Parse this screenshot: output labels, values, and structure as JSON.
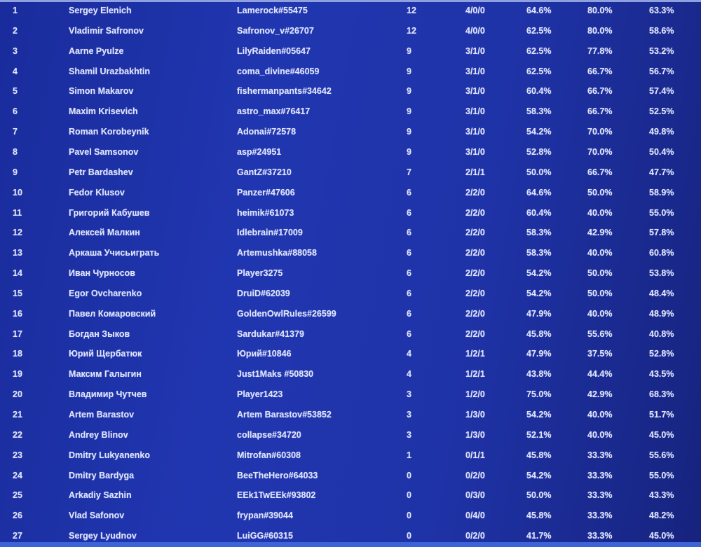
{
  "standings": [
    {
      "rank": "1",
      "name": "Sergey Elenich",
      "tag": "Lamerock#55475",
      "points": "12",
      "wld": "4/0/0",
      "stat1": "64.6%",
      "stat2": "80.0%",
      "stat3": "63.3%"
    },
    {
      "rank": "2",
      "name": "Vladimir Safronov",
      "tag": "Safronov_v#26707",
      "points": "12",
      "wld": "4/0/0",
      "stat1": "62.5%",
      "stat2": "80.0%",
      "stat3": "58.6%"
    },
    {
      "rank": "3",
      "name": "Aarne Pyulze",
      "tag": "LilyRaiden#05647",
      "points": "9",
      "wld": "3/1/0",
      "stat1": "62.5%",
      "stat2": "77.8%",
      "stat3": "53.2%"
    },
    {
      "rank": "4",
      "name": "Shamil Urazbakhtin",
      "tag": "coma_divine#46059",
      "points": "9",
      "wld": "3/1/0",
      "stat1": "62.5%",
      "stat2": "66.7%",
      "stat3": "56.7%"
    },
    {
      "rank": "5",
      "name": "Simon Makarov",
      "tag": "fishermanpants#34642",
      "points": "9",
      "wld": "3/1/0",
      "stat1": "60.4%",
      "stat2": "66.7%",
      "stat3": "57.4%"
    },
    {
      "rank": "6",
      "name": "Maxim Krisevich",
      "tag": "astro_max#76417",
      "points": "9",
      "wld": "3/1/0",
      "stat1": "58.3%",
      "stat2": "66.7%",
      "stat3": "52.5%"
    },
    {
      "rank": "7",
      "name": "Roman Korobeynik",
      "tag": "Adonai#72578",
      "points": "9",
      "wld": "3/1/0",
      "stat1": "54.2%",
      "stat2": "70.0%",
      "stat3": "49.8%"
    },
    {
      "rank": "8",
      "name": "Pavel Samsonov",
      "tag": "asp#24951",
      "points": "9",
      "wld": "3/1/0",
      "stat1": "52.8%",
      "stat2": "70.0%",
      "stat3": "50.4%"
    },
    {
      "rank": "9",
      "name": "Petr Bardashev",
      "tag": "GantZ#37210",
      "points": "7",
      "wld": "2/1/1",
      "stat1": "50.0%",
      "stat2": "66.7%",
      "stat3": "47.7%"
    },
    {
      "rank": "10",
      "name": "Fedor Klusov",
      "tag": "Panzer#47606",
      "points": "6",
      "wld": "2/2/0",
      "stat1": "64.6%",
      "stat2": "50.0%",
      "stat3": "58.9%"
    },
    {
      "rank": "11",
      "name": "Григорий Кабушев",
      "tag": "heimik#61073",
      "points": "6",
      "wld": "2/2/0",
      "stat1": "60.4%",
      "stat2": "40.0%",
      "stat3": "55.0%"
    },
    {
      "rank": "12",
      "name": "Алексей Малкин",
      "tag": "Idlebrain#17009",
      "points": "6",
      "wld": "2/2/0",
      "stat1": "58.3%",
      "stat2": "42.9%",
      "stat3": "57.8%"
    },
    {
      "rank": "13",
      "name": "Аркаша Учисьиграть",
      "tag": "Artemushka#88058",
      "points": "6",
      "wld": "2/2/0",
      "stat1": "58.3%",
      "stat2": "40.0%",
      "stat3": "60.8%"
    },
    {
      "rank": "14",
      "name": "Иван Чурносов",
      "tag": "Player3275",
      "points": "6",
      "wld": "2/2/0",
      "stat1": "54.2%",
      "stat2": "50.0%",
      "stat3": "53.8%"
    },
    {
      "rank": "15",
      "name": "Egor Ovcharenko",
      "tag": "DruiD#62039",
      "points": "6",
      "wld": "2/2/0",
      "stat1": "54.2%",
      "stat2": "50.0%",
      "stat3": "48.4%"
    },
    {
      "rank": "16",
      "name": "Павел Комаровский",
      "tag": "GoldenOwlRules#26599",
      "points": "6",
      "wld": "2/2/0",
      "stat1": "47.9%",
      "stat2": "40.0%",
      "stat3": "48.9%"
    },
    {
      "rank": "17",
      "name": "Богдан Зыков",
      "tag": "Sardukar#41379",
      "points": "6",
      "wld": "2/2/0",
      "stat1": "45.8%",
      "stat2": "55.6%",
      "stat3": "40.8%"
    },
    {
      "rank": "18",
      "name": "Юрий Щербатюк",
      "tag": "Юрий#10846",
      "points": "4",
      "wld": "1/2/1",
      "stat1": "47.9%",
      "stat2": "37.5%",
      "stat3": "52.8%"
    },
    {
      "rank": "19",
      "name": "Максим Галыгин",
      "tag": "Just1Maks #50830",
      "points": "4",
      "wld": "1/2/1",
      "stat1": "43.8%",
      "stat2": "44.4%",
      "stat3": "43.5%"
    },
    {
      "rank": "20",
      "name": "Владимир Чутчев",
      "tag": "Player1423",
      "points": "3",
      "wld": "1/2/0",
      "stat1": "75.0%",
      "stat2": "42.9%",
      "stat3": "68.3%"
    },
    {
      "rank": "21",
      "name": "Artem Barastov",
      "tag": "Artem Barastov#53852",
      "points": "3",
      "wld": "1/3/0",
      "stat1": "54.2%",
      "stat2": "40.0%",
      "stat3": "51.7%"
    },
    {
      "rank": "22",
      "name": "Andrey Blinov",
      "tag": "collapse#34720",
      "points": "3",
      "wld": "1/3/0",
      "stat1": "52.1%",
      "stat2": "40.0%",
      "stat3": "45.0%"
    },
    {
      "rank": "23",
      "name": "Dmitry Lukyanenko",
      "tag": "Mitrofan#60308",
      "points": "1",
      "wld": "0/1/1",
      "stat1": "45.8%",
      "stat2": "33.3%",
      "stat3": "55.6%"
    },
    {
      "rank": "24",
      "name": "Dmitry Bardyga",
      "tag": "BeeTheHero#64033",
      "points": "0",
      "wld": "0/2/0",
      "stat1": "54.2%",
      "stat2": "33.3%",
      "stat3": "55.0%"
    },
    {
      "rank": "25",
      "name": "Arkadiy Sazhin",
      "tag": "EEk1TwEEk#93802",
      "points": "0",
      "wld": "0/3/0",
      "stat1": "50.0%",
      "stat2": "33.3%",
      "stat3": "43.3%"
    },
    {
      "rank": "26",
      "name": "Vlad Safonov",
      "tag": "frypan#39044",
      "points": "0",
      "wld": "0/4/0",
      "stat1": "45.8%",
      "stat2": "33.3%",
      "stat3": "48.2%"
    },
    {
      "rank": "27",
      "name": "Sergey Lyudnov",
      "tag": "LuiGG#60315",
      "points": "0",
      "wld": "0/2/0",
      "stat1": "41.7%",
      "stat2": "33.3%",
      "stat3": "45.0%"
    }
  ]
}
